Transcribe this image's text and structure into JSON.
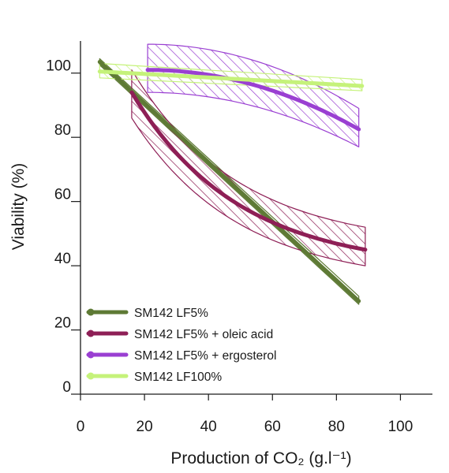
{
  "chart_data": {
    "type": "line",
    "xlabel": "Production of CO₂ (g.l⁻¹)",
    "ylabel": "Viability (%)",
    "xlim": [
      0,
      110
    ],
    "ylim": [
      0,
      110
    ],
    "x_ticks": [
      "0",
      "20",
      "40",
      "60",
      "80",
      "100"
    ],
    "y_ticks": [
      "0",
      "20",
      "40",
      "60",
      "80",
      "100"
    ],
    "legend_placement": "bottom-left",
    "grid": false,
    "series": [
      {
        "name": "SM142 LF5%",
        "color": "#5e7a35",
        "fit": "linear",
        "x": [
          6,
          87
        ],
        "y": [
          103.5,
          29
        ],
        "band_lower": [
          102.5,
          28
        ],
        "band_upper": [
          104.5,
          30.5
        ],
        "band_style": "thin"
      },
      {
        "name": "SM142 LF5% + oleic acid",
        "color": "#8e1f56",
        "fit": "exponential",
        "x": [
          16,
          89
        ],
        "y": [
          94,
          45
        ],
        "band_lower": [
          86,
          40
        ],
        "band_upper": [
          101,
          52
        ],
        "band_style": "hatched"
      },
      {
        "name": "SM142 LF5% + ergosterol",
        "color": "#9a3fd2",
        "fit": "quadratic",
        "x": [
          21,
          87
        ],
        "y": [
          101,
          82.5
        ],
        "band_lower": [
          94,
          77
        ],
        "band_upper": [
          109,
          89
        ],
        "band_style": "hatched"
      },
      {
        "name": "SM142 LF100%",
        "color": "#c5f27a",
        "fit": "linear",
        "x": [
          6,
          88
        ],
        "y": [
          100.5,
          96
        ],
        "band_lower": [
          98.5,
          94.5
        ],
        "band_upper": [
          103,
          98
        ],
        "band_style": "hatched"
      }
    ]
  }
}
